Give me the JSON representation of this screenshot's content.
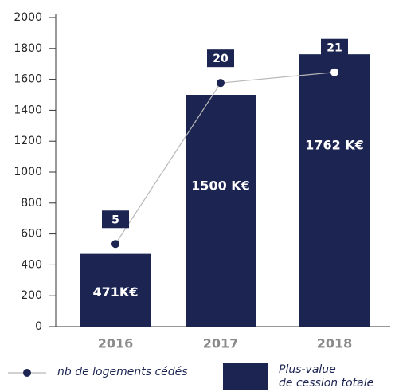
{
  "chart_data": {
    "type": "bar",
    "categories": [
      "2016",
      "2017",
      "2018"
    ],
    "series": [
      {
        "name": "Plus-value\nde cession totale",
        "type": "bar",
        "color": "#1c2452",
        "values": [
          471,
          1500,
          1762
        ],
        "value_labels": [
          "471K€",
          "1500 K€",
          "1762 K€"
        ]
      },
      {
        "name": "nb de logements cédés",
        "type": "line",
        "axis": "y2",
        "color": "#1c2452",
        "values": [
          5,
          20,
          21
        ]
      }
    ],
    "ylim": [
      0,
      2000
    ],
    "yticks": [
      0,
      200,
      400,
      600,
      800,
      1000,
      1200,
      1400,
      1600,
      1800,
      2000
    ],
    "y2lim": [
      -2.7,
      26.1
    ],
    "grid": false
  }
}
